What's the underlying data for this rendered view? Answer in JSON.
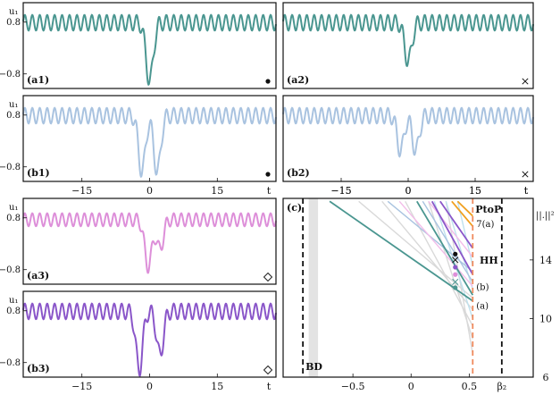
{
  "chart_data": [
    {
      "type": "line",
      "panel_label": "(a1)",
      "marker": "dot",
      "ylabel": "u₁",
      "yticks": [
        "0.8",
        "−0.8"
      ],
      "xlim": [
        -28,
        28
      ],
      "ylim": [
        -1.25,
        1.4
      ],
      "color": "#4a9690",
      "signal": {
        "base": 0.78,
        "amp": 0.24,
        "period": 1.65,
        "dips": [
          {
            "x0": 0,
            "depth": 1.8,
            "width": 0.8
          }
        ]
      }
    },
    {
      "type": "line",
      "panel_label": "(a2)",
      "marker": "cross",
      "xlim": [
        -28,
        28
      ],
      "ylim": [
        -1.25,
        1.4
      ],
      "color": "#4a9690",
      "signal": {
        "base": 0.78,
        "amp": 0.24,
        "period": 1.65,
        "dips": [
          {
            "x0": 0,
            "depth": 1.2,
            "width": 0.8
          }
        ]
      }
    },
    {
      "type": "line",
      "panel_label": "(b1)",
      "marker": "dot",
      "ylabel": "u₁",
      "yticks": [
        "0.8",
        "−0.8"
      ],
      "xlim": [
        -28,
        28
      ],
      "ylim": [
        -1.25,
        1.4
      ],
      "color": "#a9c3e0",
      "signal": {
        "base": 0.78,
        "amp": 0.24,
        "period": 1.65,
        "dips": [
          {
            "x0": -1.7,
            "depth": 1.75,
            "width": 0.75
          },
          {
            "x0": 1.7,
            "depth": 1.75,
            "width": 0.75
          }
        ]
      }
    },
    {
      "type": "line",
      "panel_label": "(b2)",
      "marker": "cross",
      "xlim": [
        -28,
        28
      ],
      "ylim": [
        -1.25,
        1.4
      ],
      "color": "#a9c3e0",
      "signal": {
        "base": 0.78,
        "amp": 0.24,
        "period": 1.65,
        "dips": [
          {
            "x0": -1.7,
            "depth": 1.1,
            "width": 0.75
          },
          {
            "x0": 1.7,
            "depth": 1.1,
            "width": 0.75
          }
        ]
      },
      "xticks": [
        "−15",
        "0",
        "15"
      ],
      "xlabel": "t"
    },
    {
      "type": "line",
      "panel_label": "(a3)",
      "marker": "diamond",
      "ylabel": "u₁",
      "yticks": [
        "0.8",
        "−0.8"
      ],
      "xlim": [
        -28,
        28
      ],
      "ylim": [
        -1.25,
        1.4
      ],
      "color": "#dd8fd9",
      "signal": {
        "base": 0.74,
        "amp": 0.2,
        "period": 1.65,
        "dips": [
          {
            "x0": -0.3,
            "depth": 1.45,
            "width": 0.8
          },
          {
            "x0": 2.3,
            "depth": 0.9,
            "width": 0.75
          }
        ]
      }
    },
    {
      "type": "line",
      "panel_label": "(b3)",
      "marker": "diamond",
      "ylabel": "u₁",
      "yticks": [
        "0.8",
        "−0.8"
      ],
      "xlim": [
        -28,
        28
      ],
      "ylim": [
        -1.25,
        1.4
      ],
      "color": "#8a56c9",
      "signal": {
        "base": 0.78,
        "amp": 0.24,
        "period": 1.65,
        "dips": [
          {
            "x0": -2.3,
            "depth": 1.8,
            "width": 0.75
          },
          {
            "x0": 2.3,
            "depth": 1.35,
            "width": 0.75
          }
        ]
      },
      "xticks": [
        "−15",
        "0",
        "15"
      ],
      "xlabel": "t"
    },
    {
      "type": "line",
      "panel_label": "(c)",
      "xlim": [
        -1.1,
        1.05
      ],
      "ylim": [
        6,
        18.2
      ],
      "xticks": [
        {
          "v": -0.5,
          "label": "−0.5"
        },
        {
          "v": 0,
          "label": "0"
        },
        {
          "v": 0.5,
          "label": "0.5"
        }
      ],
      "xlabel": "β₂",
      "yticks": [
        {
          "v": 6,
          "label": "6"
        },
        {
          "v": 10,
          "label": "10"
        },
        {
          "v": 14,
          "label": "14"
        }
      ],
      "ylabel": "||.||²",
      "shaded_region": [
        -0.88,
        -0.8
      ],
      "vlines": [
        {
          "x": -0.93,
          "label": "BD",
          "color": "#111111"
        },
        {
          "x": 0.53,
          "label": "PtoP",
          "color": "#f08a5d"
        },
        {
          "x": 0.78,
          "label": "HH",
          "color": "#111111"
        }
      ],
      "annotations": [
        {
          "x": 0.53,
          "y": 16.5,
          "text": "7(a)"
        },
        {
          "x": 0.53,
          "y": 12.2,
          "text": "(b)"
        },
        {
          "x": 0.53,
          "y": 10.9,
          "text": "(a)"
        }
      ],
      "series": [
        {
          "color": "#d9d9d9",
          "points": [
            [
              0.3,
              18.0
            ],
            [
              0.53,
              7.6
            ]
          ]
        },
        {
          "color": "#d9d9d9",
          "points": [
            [
              0.15,
              18.0
            ],
            [
              0.53,
              8.6
            ]
          ]
        },
        {
          "color": "#d9d9d9",
          "points": [
            [
              -0.05,
              18.0
            ],
            [
              0.53,
              9.5
            ]
          ]
        },
        {
          "color": "#d9d9d9",
          "points": [
            [
              -0.25,
              18.0
            ],
            [
              0.53,
              10.6
            ]
          ]
        },
        {
          "color": "#d9d9d9",
          "points": [
            [
              -0.45,
              18.0
            ],
            [
              0.53,
              11.4
            ]
          ]
        },
        {
          "color": "#bfe1ee",
          "points": [
            [
              0.2,
              18.0
            ],
            [
              0.53,
              10.0
            ]
          ]
        },
        {
          "color": "#bfe1ee",
          "points": [
            [
              0.3,
              18.0
            ],
            [
              0.53,
              12.0
            ]
          ]
        },
        {
          "color": "#bfe1ee",
          "points": [
            [
              0.4,
              18.0
            ],
            [
              0.53,
              13.6
            ]
          ]
        },
        {
          "color": "#a9c3e0",
          "points": [
            [
              0.1,
              18.0
            ],
            [
              0.53,
              12.5
            ]
          ]
        },
        {
          "color": "#a9c3e0",
          "points": [
            [
              -0.2,
              18.0
            ],
            [
              0.53,
              13.2
            ]
          ]
        },
        {
          "color": "#f2bde9",
          "points": [
            [
              -0.1,
              18.0
            ],
            [
              0.53,
              12.2
            ]
          ]
        },
        {
          "color": "#f2bde9",
          "points": [
            [
              0.15,
              18.0
            ],
            [
              0.53,
              14.2
            ]
          ]
        },
        {
          "color": "#8a56c9",
          "points": [
            [
              0.18,
              18.0
            ],
            [
              0.53,
              13.0
            ]
          ]
        },
        {
          "color": "#8a56c9",
          "points": [
            [
              0.25,
              18.0
            ],
            [
              0.53,
              14.8
            ]
          ]
        },
        {
          "color": "#4a9690",
          "points": [
            [
              -0.7,
              18.0
            ],
            [
              0.53,
              11.2
            ]
          ]
        },
        {
          "color": "#4a9690",
          "points": [
            [
              0.05,
              18.0
            ],
            [
              0.53,
              11.6
            ]
          ]
        },
        {
          "color": "#f0a020",
          "points": [
            [
              0.35,
              18.0
            ],
            [
              0.53,
              16.3
            ]
          ]
        },
        {
          "color": "#f0a020",
          "points": [
            [
              0.4,
              18.0
            ],
            [
              0.53,
              17.0
            ]
          ]
        }
      ],
      "markers": [
        {
          "x": 0.38,
          "y": 14.4,
          "shape": "dot",
          "color": "#111111"
        },
        {
          "x": 0.38,
          "y": 14.0,
          "shape": "cross",
          "color": "#111111"
        },
        {
          "x": 0.38,
          "y": 13.5,
          "shape": "dot",
          "color": "#8a56c9"
        },
        {
          "x": 0.38,
          "y": 13.0,
          "shape": "dot",
          "color": "#dd8fd9"
        },
        {
          "x": 0.38,
          "y": 12.5,
          "shape": "cross",
          "color": "#4a9690"
        },
        {
          "x": 0.38,
          "y": 12.1,
          "shape": "dot",
          "color": "#4a9690"
        }
      ]
    }
  ]
}
